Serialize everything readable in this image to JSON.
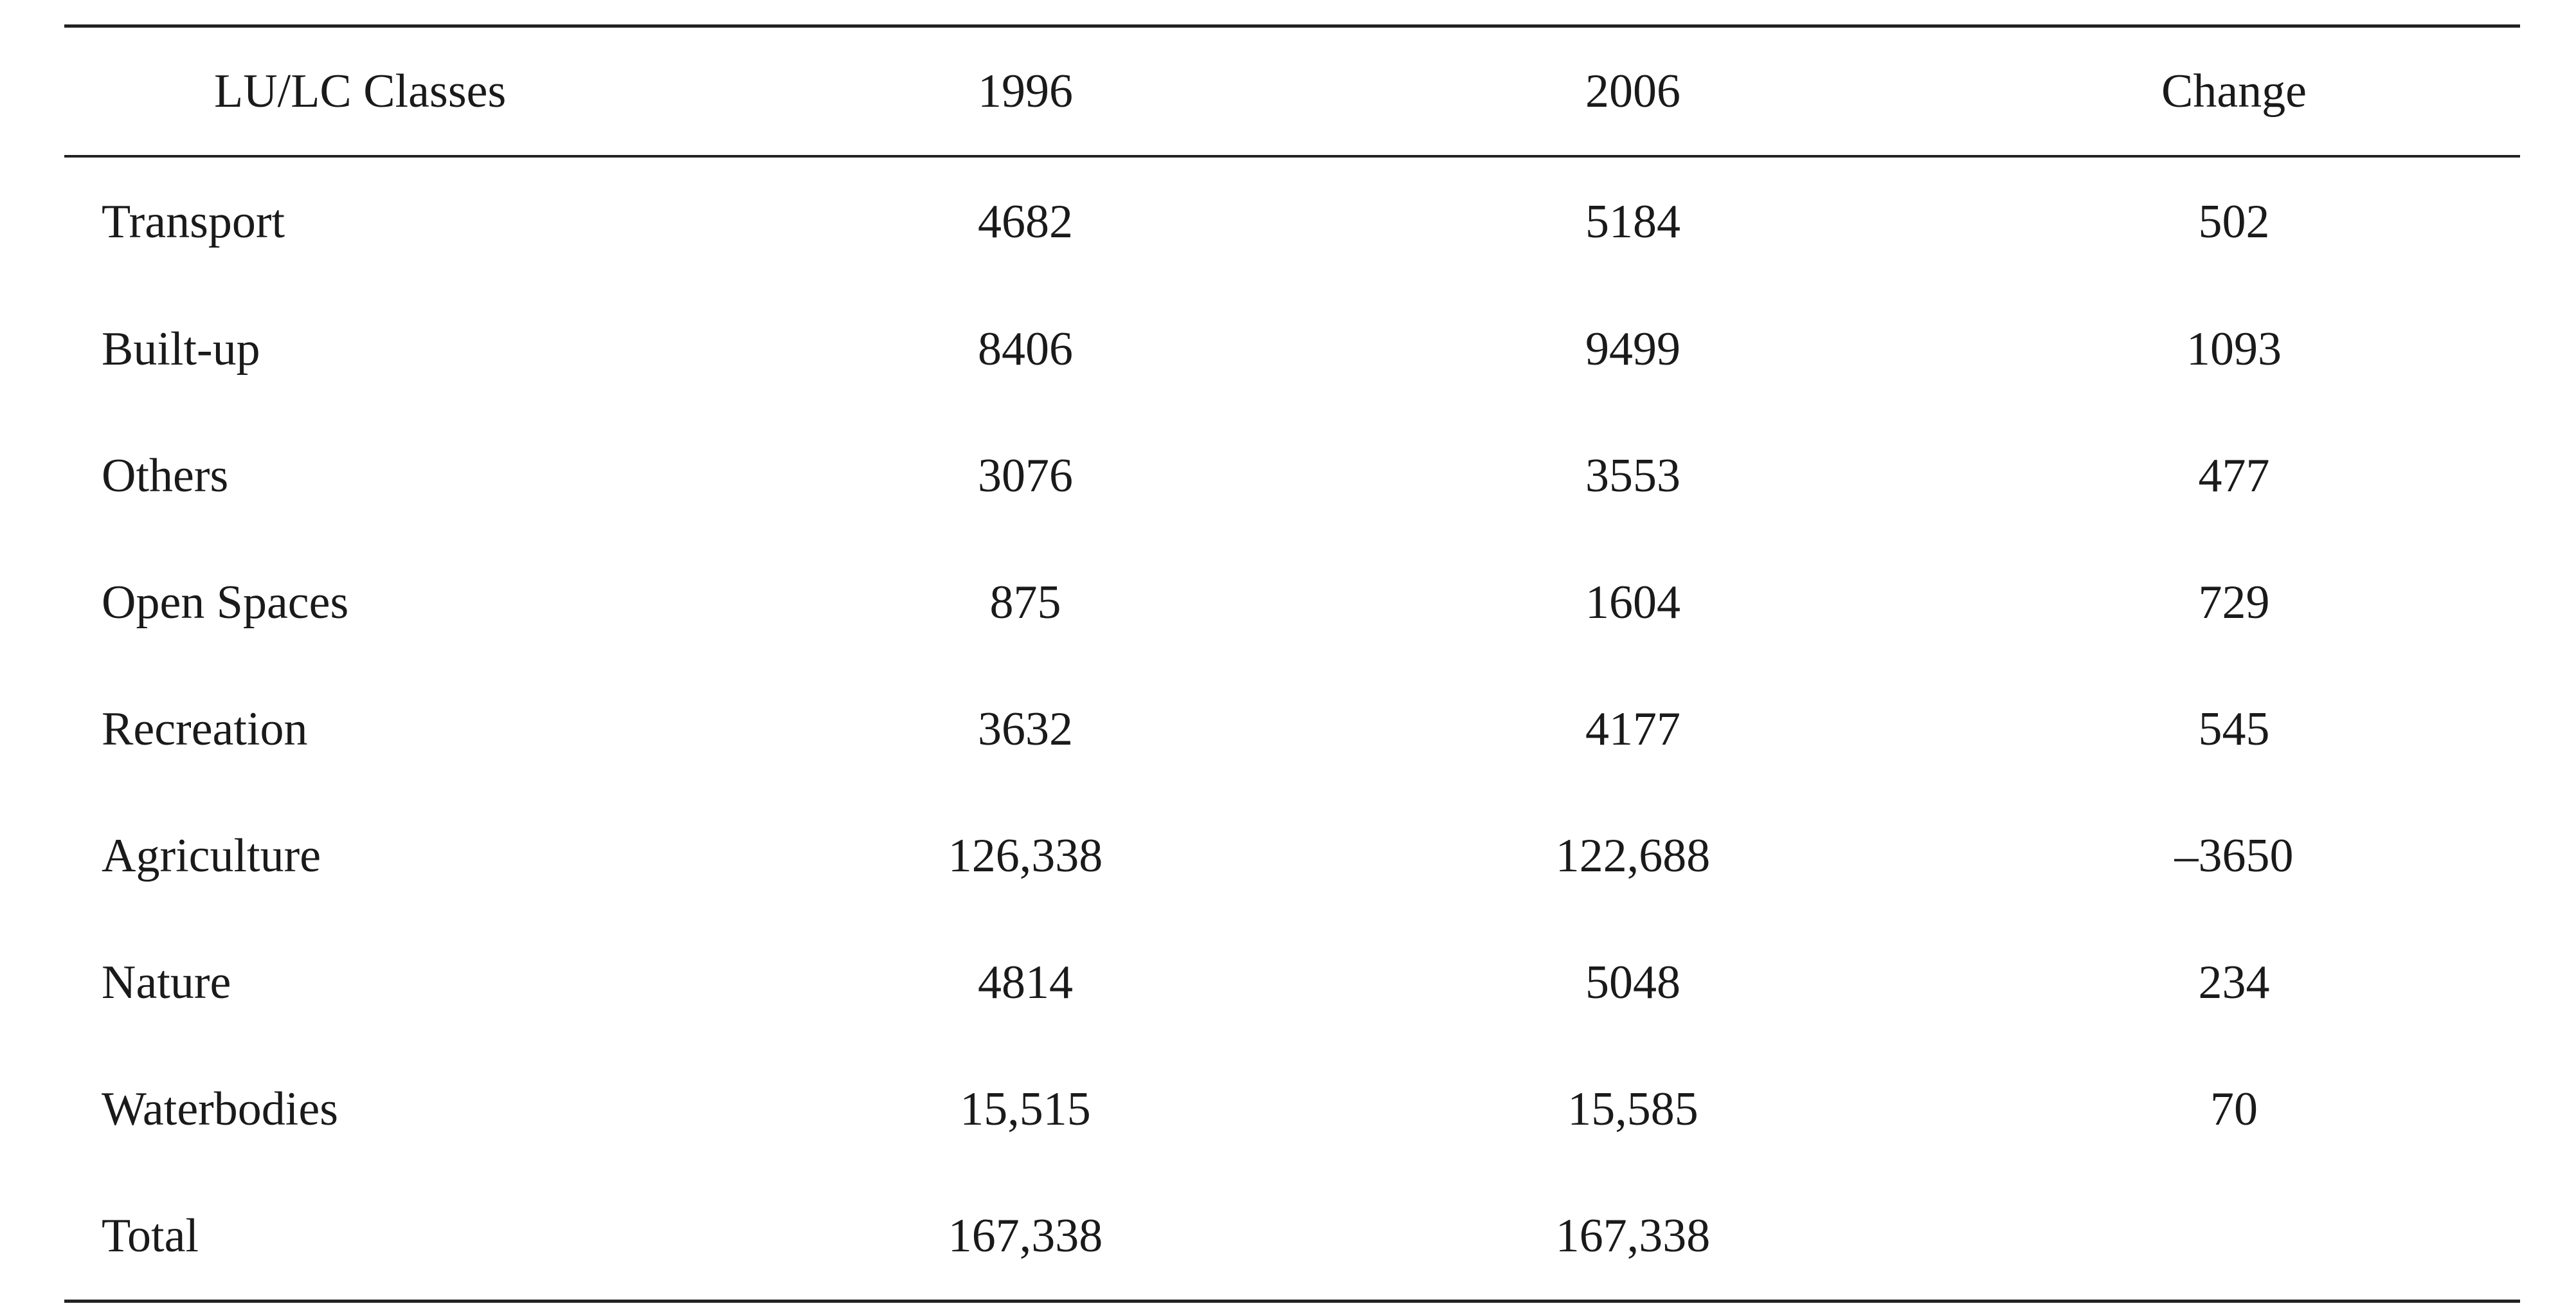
{
  "table": {
    "headers": [
      "LU/LC Classes",
      "1996",
      "2006",
      "Change"
    ],
    "rows": [
      [
        "Transport",
        "4682",
        "5184",
        "502"
      ],
      [
        "Built-up",
        "8406",
        "9499",
        "1093"
      ],
      [
        "Others",
        "3076",
        "3553",
        "477"
      ],
      [
        "Open Spaces",
        "875",
        "1604",
        "729"
      ],
      [
        "Recreation",
        "3632",
        "4177",
        "545"
      ],
      [
        "Agriculture",
        "126,338",
        "122,688",
        "–3650"
      ],
      [
        "Nature",
        "4814",
        "5048",
        "234"
      ],
      [
        "Waterbodies",
        "15,515",
        "15,585",
        "70"
      ],
      [
        "Total",
        "167,338",
        "167,338",
        ""
      ]
    ]
  }
}
